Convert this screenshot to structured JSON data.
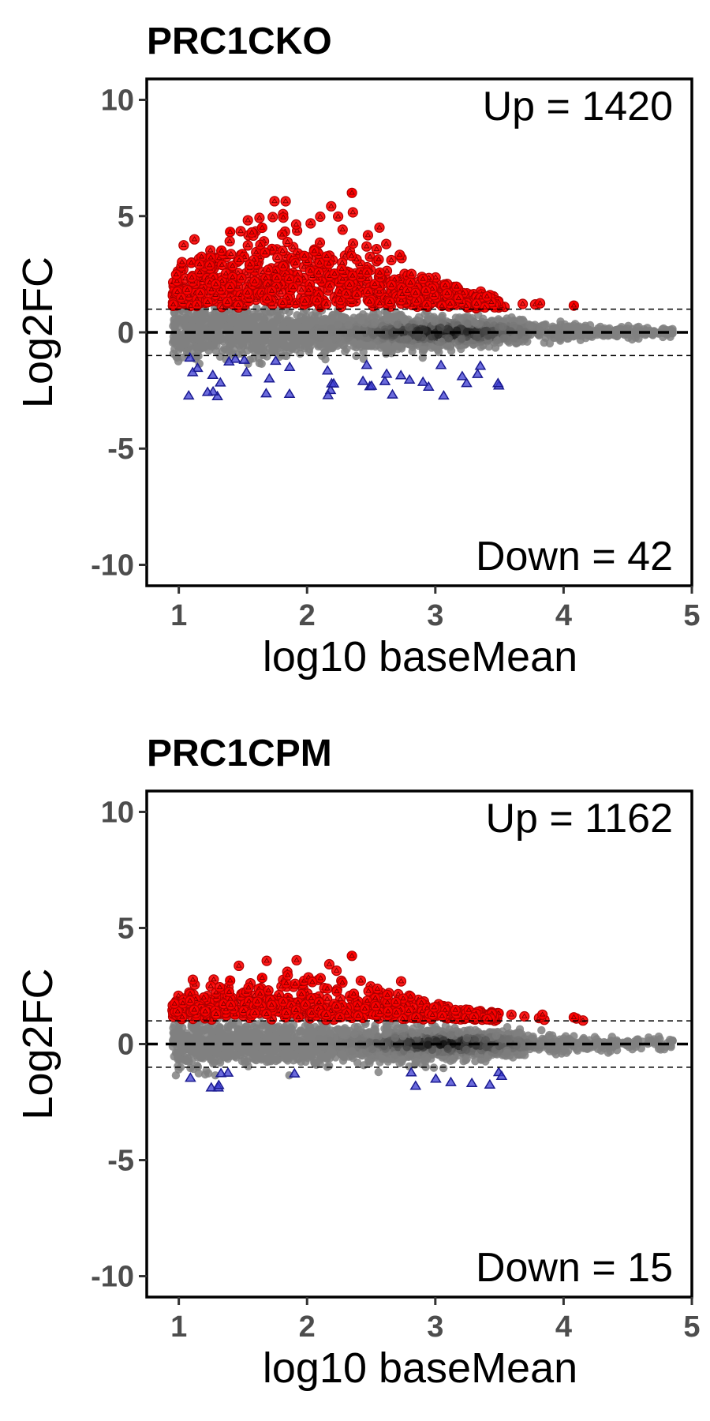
{
  "chart_data": [
    {
      "type": "scatter",
      "title": "PRC1CKO",
      "xlabel": "log10 baseMean",
      "ylabel": "Log2FC",
      "xlim": [
        0.75,
        5.0
      ],
      "ylim": [
        -10.9,
        10.9
      ],
      "xticks": [
        1,
        2,
        3,
        4,
        5
      ],
      "yticks": [
        10,
        5,
        0,
        -5,
        -10
      ],
      "hlines": [
        {
          "y": 0,
          "style": "thick-dashed"
        },
        {
          "y": 1,
          "style": "thin-dashed"
        },
        {
          "y": -1,
          "style": "thin-dashed"
        }
      ],
      "annotations": {
        "up": "Up = 1420",
        "down": "Down = 42"
      },
      "colors": {
        "up": "#ff0000",
        "down": "#2222cc",
        "ns": "#7a7a7a",
        "ns_dense": "#1a1a1a"
      },
      "up_count": 1420,
      "down_count": 42,
      "up_peak": 6.0,
      "down_min": -2.8
    },
    {
      "type": "scatter",
      "title": "PRC1CPM",
      "xlabel": "log10 baseMean",
      "ylabel": "Log2FC",
      "xlim": [
        0.75,
        5.0
      ],
      "ylim": [
        -10.9,
        10.9
      ],
      "xticks": [
        1,
        2,
        3,
        4,
        5
      ],
      "yticks": [
        10,
        5,
        0,
        -5,
        -10
      ],
      "hlines": [
        {
          "y": 0,
          "style": "thick-dashed"
        },
        {
          "y": 1,
          "style": "thin-dashed"
        },
        {
          "y": -1,
          "style": "thin-dashed"
        }
      ],
      "annotations": {
        "up": "Up = 1162",
        "down": "Down = 15"
      },
      "colors": {
        "up": "#ff0000",
        "down": "#2222cc",
        "ns": "#7a7a7a",
        "ns_dense": "#1a1a1a"
      },
      "up_count": 1162,
      "down_count": 15,
      "up_peak": 3.8,
      "down_min": -2.0
    }
  ]
}
